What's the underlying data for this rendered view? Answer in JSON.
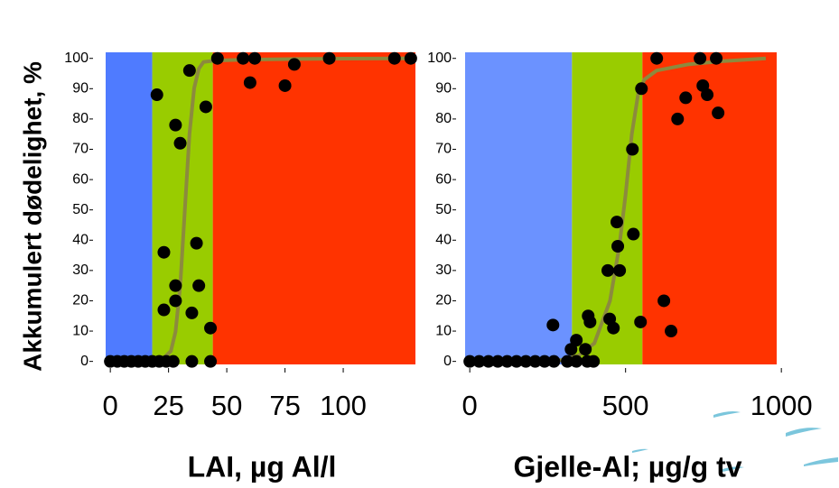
{
  "chart_data": [
    {
      "type": "scatter",
      "ylabel": "Akkumulert dødelighet, %",
      "xlabel": "LAI, µg Al/l",
      "xlim": [
        -2,
        131
      ],
      "xticks": [
        0,
        25,
        50,
        75,
        100
      ],
      "ylim": [
        -1,
        102
      ],
      "yticks": [
        0,
        10,
        20,
        30,
        40,
        50,
        60,
        70,
        80,
        90,
        100
      ],
      "regions": [
        {
          "from": -2,
          "to": 18,
          "color": "#4f7bff"
        },
        {
          "from": 18,
          "to": 44,
          "color": "#99cc00"
        },
        {
          "from": 44,
          "to": 131,
          "color": "#ff3300"
        }
      ],
      "series": [
        {
          "type": "scatter",
          "color": "#000000",
          "x": [
            20,
            34,
            28,
            30,
            41,
            46,
            57,
            62,
            60,
            75,
            79,
            94,
            122,
            129,
            23,
            37,
            23,
            28,
            28,
            35,
            38,
            43,
            35,
            43,
            0,
            3,
            6,
            9,
            12,
            15,
            18,
            21,
            24,
            27
          ],
          "values": [
            88,
            96,
            78,
            72,
            84,
            100,
            100,
            100,
            92,
            91,
            98,
            100,
            100,
            100,
            36,
            39,
            17,
            25,
            20,
            16,
            25,
            11,
            0,
            0,
            0,
            0,
            0,
            0,
            0,
            0,
            0,
            0,
            0,
            0
          ]
        },
        {
          "type": "line",
          "color": "#8c8a3e",
          "x": [
            18,
            22,
            26,
            28,
            30,
            32,
            34,
            36,
            38,
            40,
            45,
            60,
            80,
            100,
            130
          ],
          "values": [
            0,
            0.4,
            3.4,
            9.8,
            24.8,
            50,
            75.2,
            90.2,
            96.6,
            98.8,
            99.3,
            99.6,
            99.8,
            99.9,
            100
          ]
        }
      ]
    },
    {
      "type": "scatter",
      "xlabel": "Gjelle-Al; µg/g tv",
      "xlim": [
        -15,
        985
      ],
      "xticks": [
        0,
        500,
        1000
      ],
      "ylim": [
        -1,
        102
      ],
      "yticks": [
        0,
        10,
        20,
        30,
        40,
        50,
        60,
        70,
        80,
        90,
        100
      ],
      "regions": [
        {
          "from": -15,
          "to": 328,
          "color": "#6b92ff"
        },
        {
          "from": 328,
          "to": 554,
          "color": "#99cc00"
        },
        {
          "from": 554,
          "to": 985,
          "color": "#ff3300"
        }
      ],
      "series": [
        {
          "type": "scatter",
          "color": "#000000",
          "x": [
            267,
            342,
            325,
            371,
            380,
            386,
            313,
            342,
            377,
            397,
            472,
            475,
            481,
            443,
            449,
            461,
            525,
            522,
            551,
            548,
            600,
            623,
            646,
            667,
            693,
            739,
            748,
            762,
            791,
            797,
            0,
            30,
            60,
            90,
            120,
            150,
            180,
            210,
            240,
            270
          ],
          "values": [
            12,
            7,
            4,
            4,
            15,
            13,
            0,
            0,
            0,
            0,
            46,
            38,
            30,
            30,
            14,
            11,
            42,
            70,
            90,
            13,
            100,
            20,
            10,
            80,
            87,
            100,
            91,
            88,
            100,
            82,
            0,
            0,
            0,
            0,
            0,
            0,
            0,
            0,
            0,
            0
          ]
        },
        {
          "type": "line",
          "color": "#8c8a3e",
          "x": [
            250,
            300,
            350,
            400,
            450,
            480,
            500,
            520,
            540,
            560,
            600,
            700,
            800,
            950
          ],
          "values": [
            0,
            0.5,
            2,
            6,
            20,
            38,
            55,
            75,
            88,
            93,
            96,
            98,
            99,
            100
          ]
        }
      ]
    }
  ]
}
